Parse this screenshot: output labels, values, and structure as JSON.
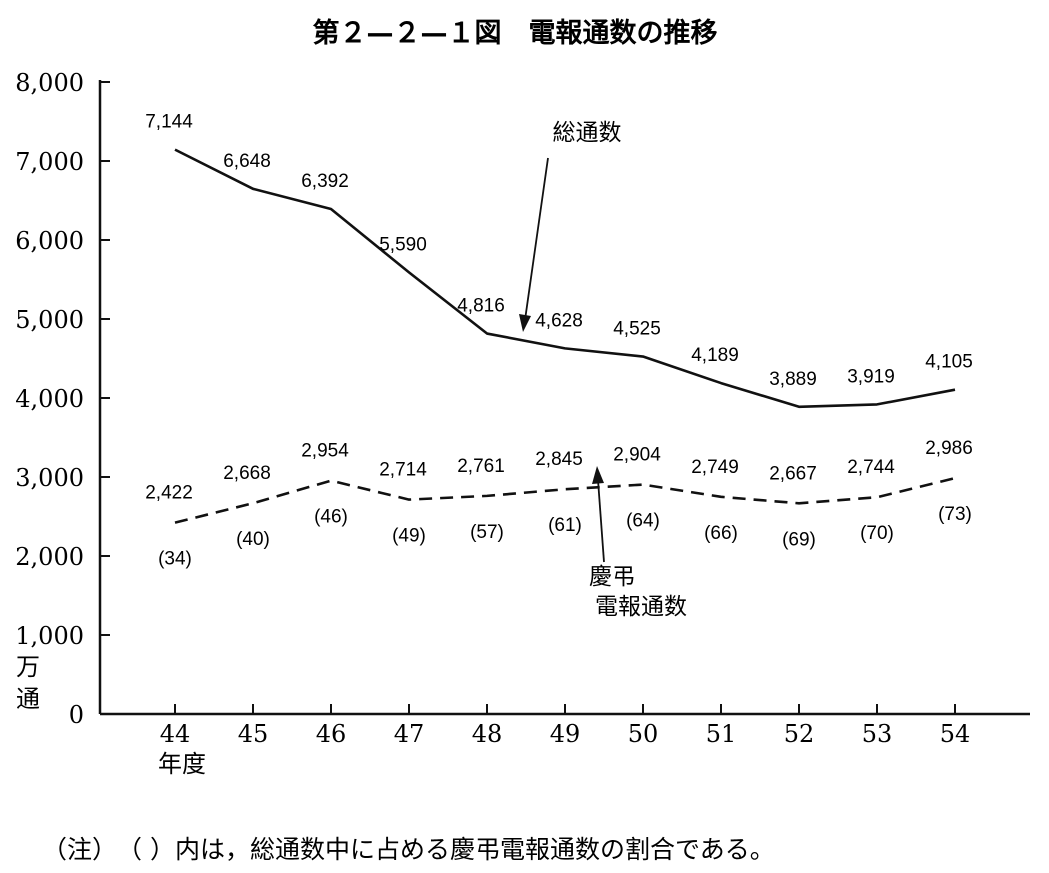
{
  "chart_data": {
    "type": "line",
    "title": "第２—２—１図　電報通数の推移",
    "x": [
      "44",
      "45",
      "46",
      "47",
      "48",
      "49",
      "50",
      "51",
      "52",
      "53",
      "54"
    ],
    "xlabel": "年度",
    "ylabel": [
      "万",
      "通"
    ],
    "ylim": [
      0,
      8000
    ],
    "yticks": [
      "0",
      "1,000",
      "2,000",
      "3,000",
      "4,000",
      "5,000",
      "6,000",
      "7,000",
      "8,000"
    ],
    "grid": false,
    "series": [
      {
        "name": "総通数",
        "style": "solid",
        "values": [
          7144,
          6648,
          6392,
          5590,
          4816,
          4628,
          4525,
          4189,
          3889,
          3919,
          4105
        ],
        "labels": [
          "7,144",
          "6,648",
          "6,392",
          "5,590",
          "4,816",
          "4,628",
          "4,525",
          "4,189",
          "3,889",
          "3,919",
          "4,105"
        ]
      },
      {
        "name": "慶弔電報通数",
        "name_lines": [
          "慶弔",
          "電報通数"
        ],
        "style": "dashed",
        "values": [
          2422,
          2668,
          2954,
          2714,
          2761,
          2845,
          2904,
          2749,
          2667,
          2744,
          2986
        ],
        "labels": [
          "2,422",
          "2,668",
          "2,954",
          "2,714",
          "2,761",
          "2,845",
          "2,904",
          "2,749",
          "2,667",
          "2,744",
          "2,986"
        ],
        "percent_labels": [
          "(34)",
          "(40)",
          "(46)",
          "(49)",
          "(57)",
          "(61)",
          "(64)",
          "(66)",
          "(69)",
          "(70)",
          "(73)"
        ]
      }
    ],
    "note": "（注）　（ ）内は，総通数中に占める慶弔電報通数の割合である。"
  }
}
